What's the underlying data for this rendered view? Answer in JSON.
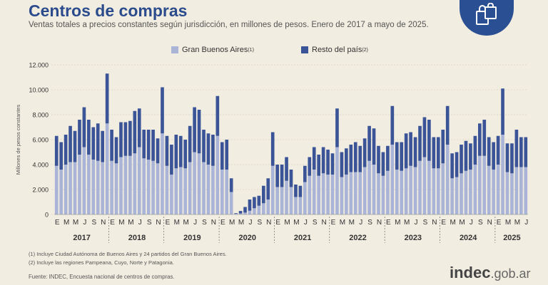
{
  "header": {
    "title": "Centros de compras",
    "subtitle": "Ventas totales a precios constantes según jurisdicción, en millones de pesos. Enero de 2017 a mayo de 2025."
  },
  "legend": [
    {
      "label": "Gran Buenos Aires",
      "note": "(1)",
      "color": "#a9b4d6"
    },
    {
      "label": "Resto del país",
      "note": "(2)",
      "color": "#3a5497"
    }
  ],
  "footnotes": [
    "(1) Incluye Ciudad Autónoma de Buenos Aires y 24 partidos del Gran Buenos Aires.",
    "(2) Incluye las regiones Pampeana, Cuyo, Norte y Patagonia."
  ],
  "source": "Fuente: INDEC, Encuesta nacional de centros de compras.",
  "logo": {
    "brand": "indec",
    "domain": ".gob.ar",
    "icon": "shopping-bags-icon"
  },
  "chart_data": {
    "type": "bar",
    "stacked": true,
    "ylabel": "Millones de pesos constantes",
    "ylim": [
      0,
      12000
    ],
    "yticks": [
      "0",
      "2.000",
      "4.000",
      "6.000",
      "8.000",
      "10.000",
      "12.000"
    ],
    "month_labels": [
      "E",
      "M",
      "M",
      "J",
      "S",
      "N"
    ],
    "year_labels": [
      "2017",
      "2018",
      "2019",
      "2020",
      "2021",
      "2022",
      "2023",
      "2024",
      "2025"
    ],
    "start": "2017-01",
    "series": [
      {
        "name": "Gran Buenos Aires",
        "color": "#a9b4d6",
        "values": [
          3900,
          3600,
          4000,
          4200,
          4200,
          4800,
          5400,
          4800,
          4400,
          4300,
          4200,
          7300,
          4300,
          4100,
          4600,
          4700,
          4700,
          4900,
          5400,
          4500,
          4400,
          4300,
          4100,
          6500,
          3900,
          3200,
          3700,
          3800,
          3700,
          4200,
          5000,
          4900,
          4200,
          4000,
          3900,
          6300,
          3600,
          3600,
          1800,
          50,
          80,
          150,
          300,
          500,
          700,
          900,
          1200,
          3900,
          2200,
          2200,
          2700,
          2200,
          1400,
          1400,
          2600,
          3100,
          3600,
          3100,
          3300,
          3200,
          3200,
          5400,
          3000,
          3200,
          3400,
          3400,
          3400,
          3800,
          4300,
          4000,
          3300,
          3100,
          3500,
          5600,
          3600,
          3500,
          3700,
          3900,
          3800,
          4300,
          4600,
          4300,
          3700,
          3700,
          4100,
          5600,
          2900,
          3000,
          3300,
          3500,
          3600,
          4000,
          4700,
          4700,
          3900,
          3600,
          4000,
          6400,
          3400,
          3300,
          3800,
          3800,
          3800
        ]
      },
      {
        "name": "Resto del país",
        "color": "#3a5497",
        "values": [
          2400,
          2200,
          2400,
          2900,
          2500,
          2800,
          3200,
          2800,
          2600,
          3000,
          2500,
          4000,
          2500,
          2100,
          2800,
          2700,
          2800,
          3400,
          3100,
          2300,
          2400,
          2500,
          2000,
          3700,
          2400,
          2400,
          2700,
          2500,
          2300,
          2900,
          3600,
          3500,
          2600,
          2500,
          2500,
          3200,
          2200,
          2400,
          1100,
          50,
          200,
          450,
          900,
          900,
          800,
          1400,
          1700,
          2700,
          1800,
          1800,
          1900,
          1400,
          1000,
          900,
          1300,
          1500,
          1800,
          1700,
          2100,
          2000,
          1700,
          3100,
          2000,
          2100,
          2200,
          2400,
          2100,
          2300,
          2800,
          2900,
          2200,
          1900,
          2000,
          3100,
          2200,
          2300,
          2800,
          2700,
          2400,
          2800,
          3200,
          3300,
          2500,
          2500,
          2700,
          3100,
          2000,
          2000,
          2300,
          2400,
          2100,
          2300,
          2600,
          2900,
          2300,
          2200,
          2300,
          3700,
          2300,
          2400,
          3000,
          2400,
          2400
        ]
      }
    ]
  }
}
